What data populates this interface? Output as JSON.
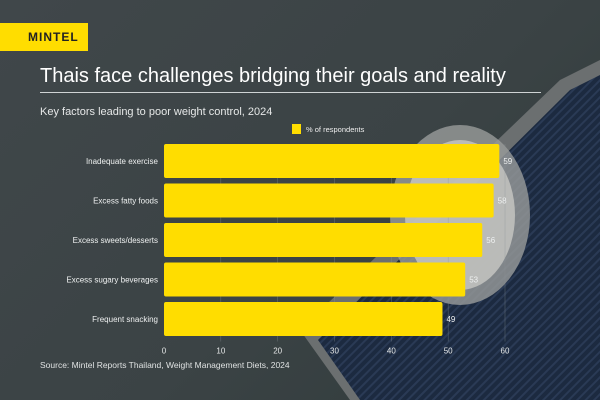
{
  "brand": {
    "logo": "MINTEL",
    "color": "#ffdd00"
  },
  "header": {
    "title": "Thais face challenges bridging their goals and reality"
  },
  "source": "Source: Mintel Reports Thailand, Weight Management Diets, 2024",
  "chart_data": {
    "type": "bar",
    "orientation": "horizontal",
    "title": "Key factors leading to poor weight control, 2024",
    "categories": [
      "Inadequate exercise",
      "Excess fatty foods",
      "Excess sweets/desserts",
      "Excess sugary beverages",
      "Frequent snacking"
    ],
    "series": [
      {
        "name": "% of respondents",
        "values": [
          59,
          58,
          56,
          53,
          49
        ],
        "color": "#ffdd00"
      }
    ],
    "xlim": [
      0,
      60
    ],
    "xticks": [
      0,
      10,
      20,
      30,
      40,
      50,
      60
    ],
    "legend": "top",
    "grid": false,
    "data_labels": true
  }
}
